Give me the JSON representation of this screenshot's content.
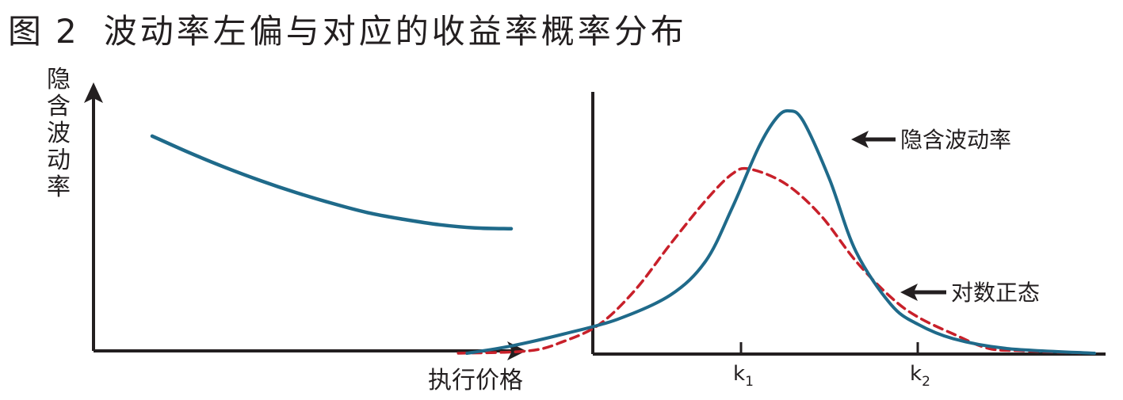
{
  "figure": {
    "label": "图",
    "number": "2",
    "title": "波动率左偏与对应的收益率概率分布"
  },
  "colors": {
    "axis": "#231f20",
    "implied_vol": "#1f6a8a",
    "lognormal": "#c8202a"
  },
  "chart_data": [
    {
      "type": "line",
      "ylabel": "隐含波动率",
      "xlabel": "执行价格",
      "series": [
        {
          "points": [
            [
              0.0,
              0.8
            ],
            [
              0.1,
              0.74
            ],
            [
              0.2,
              0.685
            ],
            [
              0.3,
              0.635
            ],
            [
              0.4,
              0.59
            ],
            [
              0.5,
              0.55
            ],
            [
              0.6,
              0.515
            ],
            [
              0.7,
              0.49
            ],
            [
              0.8,
              0.47
            ],
            [
              0.9,
              0.458
            ],
            [
              1.0,
              0.455
            ]
          ],
          "color": "#1f6a8a",
          "style": "solid"
        }
      ],
      "grid": false
    },
    {
      "type": "line",
      "x_ticks": [
        {
          "main": "k",
          "sub": "1",
          "x": 1.0
        },
        {
          "main": "k",
          "sub": "2",
          "x": 2.0
        }
      ],
      "annotations": [
        {
          "text": "隐含波动率",
          "points_to": "implied_vol"
        },
        {
          "text": "对数正态",
          "points_to": "lognormal"
        }
      ],
      "series": [
        {
          "key": "implied_vol",
          "color": "#1f6a8a",
          "style": "solid",
          "points": [
            [
              -0.55,
              0.0
            ],
            [
              -0.3,
              0.03
            ],
            [
              0.0,
              0.08
            ],
            [
              0.3,
              0.14
            ],
            [
              0.6,
              0.24
            ],
            [
              0.8,
              0.38
            ],
            [
              0.95,
              0.6
            ],
            [
              1.1,
              0.85
            ],
            [
              1.2,
              0.97
            ],
            [
              1.27,
              1.0
            ],
            [
              1.35,
              0.96
            ],
            [
              1.5,
              0.72
            ],
            [
              1.65,
              0.42
            ],
            [
              1.85,
              0.2
            ],
            [
              2.0,
              0.12
            ],
            [
              2.2,
              0.06
            ],
            [
              2.5,
              0.02
            ],
            [
              3.0,
              0.0
            ]
          ]
        },
        {
          "key": "lognormal",
          "color": "#c8202a",
          "style": "dashed",
          "points": [
            [
              -0.6,
              0.0
            ],
            [
              -0.2,
              0.01
            ],
            [
              0.0,
              0.05
            ],
            [
              0.2,
              0.12
            ],
            [
              0.4,
              0.26
            ],
            [
              0.6,
              0.45
            ],
            [
              0.8,
              0.63
            ],
            [
              0.95,
              0.74
            ],
            [
              1.05,
              0.76
            ],
            [
              1.25,
              0.7
            ],
            [
              1.45,
              0.57
            ],
            [
              1.65,
              0.38
            ],
            [
              1.85,
              0.23
            ],
            [
              2.0,
              0.15
            ],
            [
              2.2,
              0.08
            ],
            [
              2.4,
              0.02
            ],
            [
              2.6,
              0.01
            ],
            [
              3.0,
              0.0
            ]
          ]
        }
      ],
      "grid": false
    }
  ]
}
